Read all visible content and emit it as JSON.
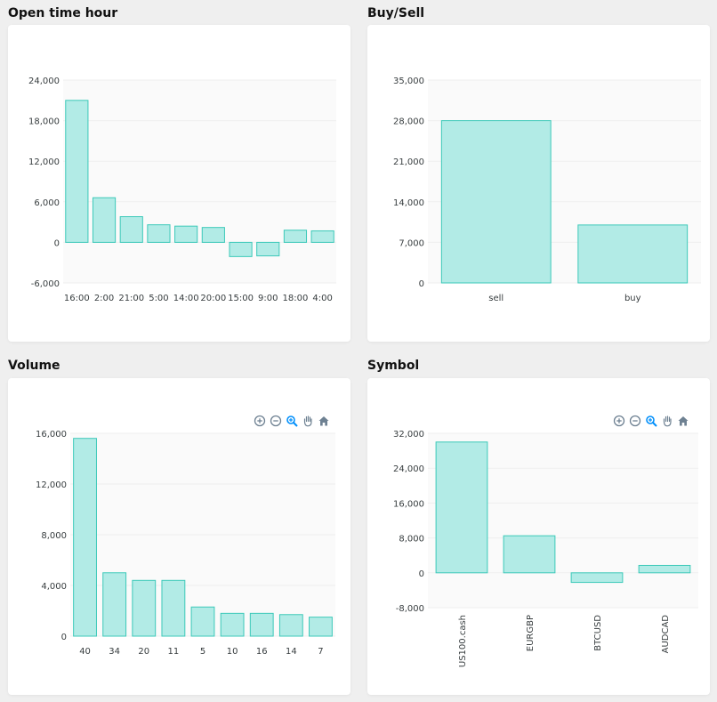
{
  "panels": [
    {
      "title": "Open time hour"
    },
    {
      "title": "Buy/Sell"
    },
    {
      "title": "Volume"
    },
    {
      "title": "Symbol"
    }
  ],
  "toolbar": {
    "icons": [
      "zoom-in-icon",
      "zoom-out-icon",
      "zoom-selection-icon",
      "pan-hand-icon",
      "reset-home-icon"
    ],
    "active_color": "#008ffb",
    "idle_color": "#6e8192"
  },
  "colors": {
    "bar_fill": "#b2ebe6",
    "bar_stroke": "#3cc9b9",
    "plot_bg": "#fafafa",
    "grid": "#efefef",
    "axis_text": "#373d3f"
  },
  "chart_data": [
    {
      "type": "bar",
      "title": "Open time hour",
      "categories": [
        "16:00",
        "2:00",
        "21:00",
        "5:00",
        "14:00",
        "20:00",
        "15:00",
        "9:00",
        "18:00",
        "4:00"
      ],
      "values": [
        21000,
        6600,
        3800,
        2600,
        2400,
        2200,
        -2100,
        -2000,
        1800,
        1700
      ],
      "yticks": [
        "24,000",
        "18,000",
        "12,000",
        "6,000",
        "0",
        "-6,000"
      ],
      "ylim": [
        -6000,
        24000
      ]
    },
    {
      "type": "bar",
      "title": "Buy/Sell",
      "categories": [
        "sell",
        "buy"
      ],
      "values": [
        28000,
        10000
      ],
      "yticks": [
        "35,000",
        "28,000",
        "21,000",
        "14,000",
        "7,000",
        "0"
      ],
      "ylim": [
        0,
        35000
      ]
    },
    {
      "type": "bar",
      "title": "Volume",
      "categories": [
        "40",
        "34",
        "20",
        "11",
        "5",
        "10",
        "16",
        "14",
        "7"
      ],
      "values": [
        15600,
        5000,
        4400,
        4400,
        2300,
        1800,
        1800,
        1700,
        1500
      ],
      "yticks": [
        "16,000",
        "12,000",
        "8,000",
        "4,000",
        "0"
      ],
      "ylim": [
        0,
        16000
      ]
    },
    {
      "type": "bar",
      "title": "Symbol",
      "categories": [
        "US100.cash",
        "EURGBP",
        "BTCUSD",
        "AUDCAD"
      ],
      "values": [
        30000,
        8500,
        -2200,
        1700
      ],
      "yticks": [
        "32,000",
        "24,000",
        "16,000",
        "8,000",
        "0",
        "-8,000"
      ],
      "ylim": [
        -8000,
        32000
      ]
    }
  ]
}
